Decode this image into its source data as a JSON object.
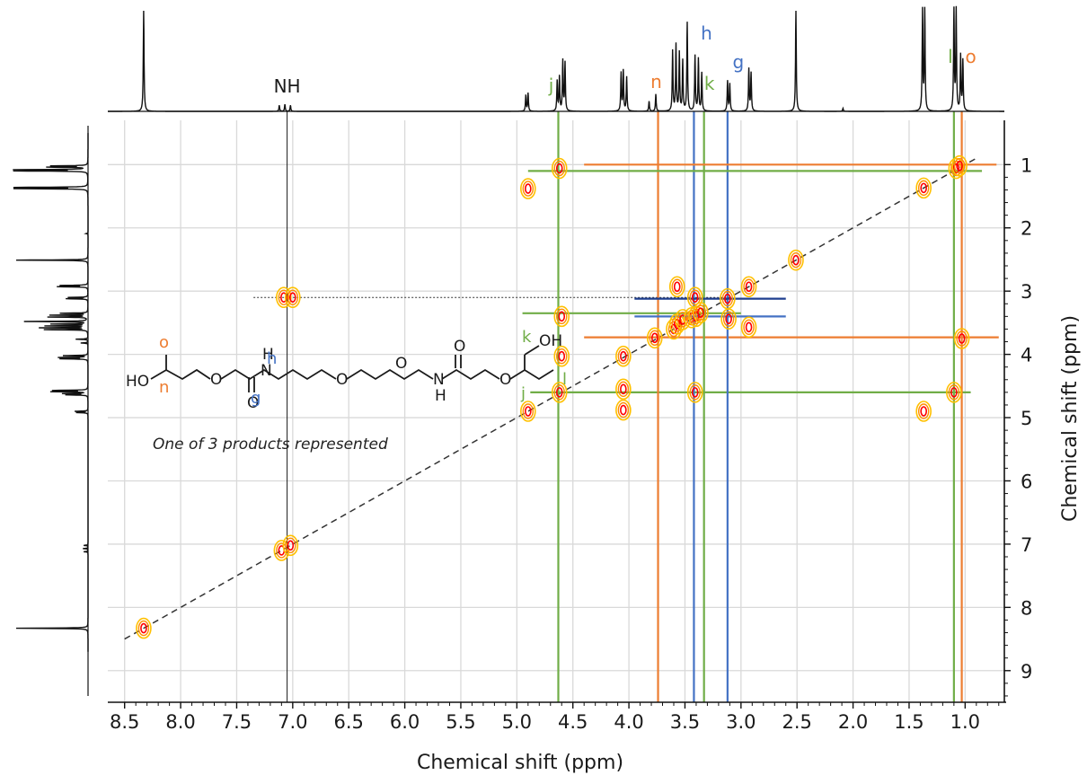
{
  "colors": {
    "orange": "#ed7d31",
    "green": "#70ad47",
    "blue": "#4472c4",
    "darkblue": "#1f3f8f",
    "grid": "#d9d9d9",
    "contour_outer": "#ffc000",
    "contour_inner": "#ff0000"
  },
  "chart_data": {
    "type": "heatmap",
    "xlabel": "Chemical shift (ppm)",
    "ylabel": "Chemical shift (ppm)",
    "xlim": [
      8.65,
      0.65
    ],
    "ylim": [
      0.3,
      9.5
    ],
    "xticks": [
      "8.5",
      "8.0",
      "7.5",
      "7.0",
      "6.5",
      "6.0",
      "5.5",
      "5.0",
      "4.5",
      "4.0",
      "3.5",
      "3.0",
      "2.5",
      "2.0",
      "1.5",
      "1.0"
    ],
    "yticks": [
      "1",
      "2",
      "3",
      "4",
      "5",
      "6",
      "7",
      "8",
      "9"
    ],
    "grid": true,
    "diagonal": [
      [
        8.5,
        8.5
      ],
      [
        0.9,
        0.9
      ]
    ],
    "crosspeaks": [
      {
        "x": 8.33,
        "y": 8.33
      },
      {
        "x": 7.1,
        "y": 7.1
      },
      {
        "x": 7.02,
        "y": 7.02
      },
      {
        "x": 7.08,
        "y": 3.1
      },
      {
        "x": 7.0,
        "y": 3.1
      },
      {
        "x": 4.9,
        "y": 1.38
      },
      {
        "x": 4.9,
        "y": 4.9
      },
      {
        "x": 4.62,
        "y": 1.06
      },
      {
        "x": 4.6,
        "y": 3.4
      },
      {
        "x": 4.62,
        "y": 4.6
      },
      {
        "x": 4.6,
        "y": 4.03
      },
      {
        "x": 4.05,
        "y": 4.03
      },
      {
        "x": 4.05,
        "y": 4.55
      },
      {
        "x": 4.05,
        "y": 4.88
      },
      {
        "x": 3.77,
        "y": 3.74
      },
      {
        "x": 3.6,
        "y": 3.6
      },
      {
        "x": 3.57,
        "y": 3.52
      },
      {
        "x": 3.57,
        "y": 2.93
      },
      {
        "x": 3.52,
        "y": 3.45
      },
      {
        "x": 3.44,
        "y": 3.42
      },
      {
        "x": 3.41,
        "y": 3.1
      },
      {
        "x": 3.4,
        "y": 3.4
      },
      {
        "x": 3.36,
        "y": 3.34
      },
      {
        "x": 3.41,
        "y": 4.6
      },
      {
        "x": 3.12,
        "y": 3.12
      },
      {
        "x": 3.11,
        "y": 3.44
      },
      {
        "x": 2.93,
        "y": 2.93
      },
      {
        "x": 2.93,
        "y": 3.57
      },
      {
        "x": 2.51,
        "y": 2.51
      },
      {
        "x": 1.37,
        "y": 1.37
      },
      {
        "x": 1.37,
        "y": 4.9
      },
      {
        "x": 1.08,
        "y": 1.06
      },
      {
        "x": 1.05,
        "y": 1.02
      },
      {
        "x": 1.1,
        "y": 4.6
      },
      {
        "x": 1.03,
        "y": 3.75
      }
    ],
    "spectrum_1d_peaks": [
      {
        "ppm": 8.33,
        "height": 1.0
      },
      {
        "ppm": 7.12,
        "height": 0.06
      },
      {
        "ppm": 7.07,
        "height": 0.07
      },
      {
        "ppm": 7.02,
        "height": 0.06
      },
      {
        "ppm": 4.92,
        "height": 0.16
      },
      {
        "ppm": 4.9,
        "height": 0.18
      },
      {
        "ppm": 4.64,
        "height": 0.3
      },
      {
        "ppm": 4.62,
        "height": 0.34
      },
      {
        "ppm": 4.59,
        "height": 0.5
      },
      {
        "ppm": 4.57,
        "height": 0.48
      },
      {
        "ppm": 4.07,
        "height": 0.38
      },
      {
        "ppm": 4.05,
        "height": 0.4
      },
      {
        "ppm": 4.02,
        "height": 0.34
      },
      {
        "ppm": 3.82,
        "height": 0.1
      },
      {
        "ppm": 3.76,
        "height": 0.17
      },
      {
        "ppm": 3.61,
        "height": 0.6
      },
      {
        "ppm": 3.58,
        "height": 0.66
      },
      {
        "ppm": 3.55,
        "height": 0.58
      },
      {
        "ppm": 3.52,
        "height": 0.5
      },
      {
        "ppm": 3.48,
        "height": 0.88
      },
      {
        "ppm": 3.41,
        "height": 0.55
      },
      {
        "ppm": 3.38,
        "height": 0.52
      },
      {
        "ppm": 3.35,
        "height": 0.38
      },
      {
        "ppm": 3.12,
        "height": 0.3
      },
      {
        "ppm": 3.1,
        "height": 0.27
      },
      {
        "ppm": 2.93,
        "height": 0.42
      },
      {
        "ppm": 2.91,
        "height": 0.38
      },
      {
        "ppm": 2.51,
        "height": 1.0
      },
      {
        "ppm": 2.09,
        "height": 0.03
      },
      {
        "ppm": 1.38,
        "height": 1.0
      },
      {
        "ppm": 1.36,
        "height": 1.0
      },
      {
        "ppm": 1.1,
        "height": 1.0
      },
      {
        "ppm": 1.08,
        "height": 1.0
      },
      {
        "ppm": 1.04,
        "height": 0.55
      },
      {
        "ppm": 1.02,
        "height": 0.5
      }
    ],
    "assignments": [
      {
        "label": "NH",
        "ppm": 7.05,
        "color": "#1a1a1a",
        "crossY": 3.1
      },
      {
        "label": "j",
        "ppm": 4.63,
        "color": "#70ad47",
        "crossY": 4.6
      },
      {
        "label": "n",
        "ppm": 3.74,
        "color": "#ed7d31",
        "crossY": 3.73
      },
      {
        "label": "h",
        "ppm": 3.42,
        "color": "#4472c4",
        "crossY": 3.4
      },
      {
        "label": "k",
        "ppm": 3.33,
        "color": "#70ad47",
        "crossY": 3.35
      },
      {
        "label": "g",
        "ppm": 3.12,
        "color": "#4472c4",
        "crossY": 3.12
      },
      {
        "label": "l",
        "ppm": 1.1,
        "color": "#70ad47",
        "crossY": 1.1
      },
      {
        "label": "o",
        "ppm": 1.03,
        "color": "#ed7d31",
        "crossY": 1.0
      }
    ]
  },
  "structure": {
    "atoms": {
      "HO": "HO",
      "O": "O",
      "H": "H",
      "N": "N",
      "OH": "OH"
    },
    "labels": {
      "o": "o",
      "n": "n",
      "h": "h",
      "g": "g",
      "k": "k",
      "j": "j",
      "l": "l"
    },
    "caption": "One of 3 products represented"
  }
}
